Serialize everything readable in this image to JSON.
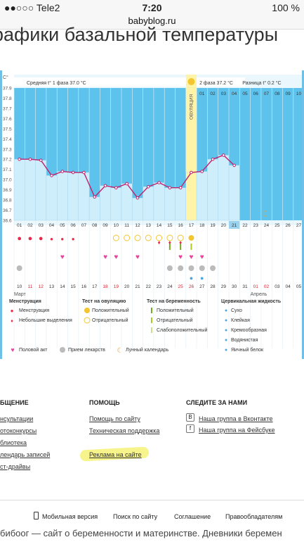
{
  "status": {
    "carrier": "●●○○○ Tele2",
    "time": "7:20",
    "battery": "100 %",
    "url": "babyblog.ru"
  },
  "page": {
    "headline": "рафики базальной температуры"
  },
  "chart_data": {
    "type": "line",
    "unit_label": "C°",
    "ylim": [
      36.6,
      37.9
    ],
    "y_ticks": [
      "37.9",
      "37.8",
      "37.7",
      "37.6",
      "37.5",
      "37.4",
      "37.3",
      "37.2",
      "37.1",
      "37.0",
      "36.9",
      "36.8",
      "36.7",
      "36.6"
    ],
    "phase1_label": "Средняя t° 1 фаза 37.0 °C",
    "phase2_label": "2 фаза 37.2 °C",
    "diff_label": "Разница t° 0.2 °C",
    "ovulation_label": "ОВУЛЯЦИЯ",
    "cycle_days": [
      "01",
      "02",
      "03",
      "04",
      "05",
      "06",
      "07",
      "08",
      "09",
      "10",
      "11",
      "12",
      "13",
      "14",
      "15",
      "16",
      "17",
      "18",
      "19",
      "20",
      "21",
      "22",
      "23",
      "24",
      "25",
      "26",
      "27",
      "28",
      "29",
      "30",
      "31"
    ],
    "top_days_after_ovulation": [
      "01",
      "02",
      "03",
      "04",
      "05",
      "06",
      "07",
      "08",
      "09",
      "10",
      "11",
      "12",
      "13",
      "14"
    ],
    "temperatures": [
      37.2,
      37.2,
      37.19,
      37.04,
      37.08,
      37.07,
      37.07,
      36.83,
      36.94,
      36.92,
      36.96,
      36.82,
      36.93,
      36.97,
      36.92,
      36.92,
      37.07,
      37.08,
      37.2,
      37.24,
      37.14
    ],
    "dates": [
      "10",
      "11",
      "12",
      "13",
      "14",
      "15",
      "16",
      "17",
      "18",
      "19",
      "20",
      "21",
      "22",
      "23",
      "24",
      "25",
      "26",
      "27",
      "28",
      "29",
      "30",
      "31",
      "01",
      "02",
      "03",
      "04",
      "05",
      "06",
      "07",
      "08",
      "09"
    ],
    "month_1": "Март",
    "month_2": "Апрель",
    "current_date": "30",
    "current_day": "21"
  },
  "legend": {
    "menstruation_title": "Менструация",
    "menstruation": "Менструация",
    "light_discharge": "Небольшие выделения",
    "ovulation_test_title": "Тест на овуляцию",
    "positive": "Положительный",
    "negative": "Отрицательный",
    "pregnancy_test_title": "Тест на беременность",
    "preg_positive": "Положительный",
    "preg_negative": "Отрицательный",
    "preg_weak": "Слабоположительный",
    "cervical_title": "Цервикальная жидкость",
    "dry": "Сухо",
    "sticky": "Клейкая",
    "creamy": "Кремообразная",
    "watery": "Водянистая",
    "egg_white": "Яичный белок",
    "sex": "Половой акт",
    "medication": "Прием лекарств",
    "lunar": "Лунный календарь"
  },
  "footer": {
    "col1_title": "БЩЕНИЕ",
    "col1_items": [
      "нсультации",
      "отоконкурсы",
      "блиотека",
      "лендарь записей",
      "ст-драйвы"
    ],
    "col2_title": "ПОМОЩЬ",
    "col2_items": [
      "Помощь по сайту",
      "Техническая поддержка",
      "Реклама на сайте"
    ],
    "col3_title": "СЛЕДИТЕ ЗА НАМИ",
    "col3_items": [
      "Наша группа в Вконтакте",
      "Наша группа на Фейсбуке"
    ],
    "bottom_links": [
      "Мобильная версия",
      "Поиск по сайту",
      "Соглашение",
      "Правообладателям"
    ],
    "tagline": "бибоог — сайт о беременности и материнстве. Дневники беремен"
  },
  "colors": {
    "sky": "#5ec3ec",
    "bar": "#cfeefb",
    "line": "#c0206e",
    "ovulation": "#fff3a8",
    "accent": "#e8294a"
  }
}
